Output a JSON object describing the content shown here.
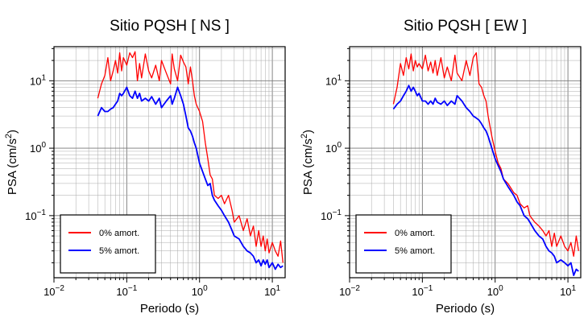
{
  "chart_data": [
    {
      "type": "line",
      "title": "Sitio PQSH [ NS ]",
      "xlabel": "Periodo (s)",
      "ylabel_text": "PSA (cm/s",
      "ylabel_sup": "2",
      "ylabel_close": ")",
      "xscale": "log",
      "yscale": "log",
      "xlim": [
        0.01,
        15
      ],
      "ylim": [
        0.012,
        32
      ],
      "grid": true,
      "legend_position": "bottom-left",
      "x_ticks": [
        {
          "value": 0.01,
          "base": "10",
          "exp": "−2"
        },
        {
          "value": 0.1,
          "base": "10",
          "exp": "−1"
        },
        {
          "value": 1,
          "base": "10",
          "exp": "0"
        },
        {
          "value": 10,
          "base": "10",
          "exp": "1"
        }
      ],
      "y_ticks": [
        {
          "value": 0.1,
          "base": "10",
          "exp": "−1"
        },
        {
          "value": 1,
          "base": "10",
          "exp": "0"
        },
        {
          "value": 10,
          "base": "10",
          "exp": "1"
        }
      ],
      "series": [
        {
          "name": "0% amort.",
          "color": "#ff0000",
          "x": [
            0.04,
            0.045,
            0.05,
            0.055,
            0.06,
            0.065,
            0.07,
            0.075,
            0.08,
            0.085,
            0.09,
            0.1,
            0.11,
            0.12,
            0.13,
            0.14,
            0.15,
            0.16,
            0.18,
            0.2,
            0.22,
            0.25,
            0.28,
            0.3,
            0.35,
            0.4,
            0.42,
            0.45,
            0.5,
            0.55,
            0.6,
            0.65,
            0.7,
            0.75,
            0.8,
            0.85,
            0.9,
            1.0,
            1.1,
            1.2,
            1.3,
            1.4,
            1.5,
            1.6,
            1.8,
            2.0,
            2.2,
            2.5,
            2.8,
            3.0,
            3.5,
            4.0,
            4.5,
            5.0,
            5.5,
            6.0,
            6.5,
            7.0,
            7.5,
            8.0,
            8.5,
            9.0,
            10,
            11,
            12,
            13,
            14
          ],
          "y": [
            5.5,
            9,
            12,
            22,
            10,
            14,
            20,
            13,
            26,
            14,
            22,
            17,
            26,
            22,
            27,
            10,
            18,
            11,
            25,
            14,
            11,
            17,
            10,
            20,
            13,
            9,
            25,
            15,
            10,
            24,
            19,
            16,
            9,
            16,
            10,
            6,
            4.5,
            3.5,
            2.5,
            1.2,
            0.7,
            0.4,
            0.35,
            0.2,
            0.18,
            0.2,
            0.15,
            0.2,
            0.12,
            0.08,
            0.1,
            0.06,
            0.09,
            0.05,
            0.07,
            0.035,
            0.06,
            0.035,
            0.05,
            0.03,
            0.045,
            0.028,
            0.04,
            0.03,
            0.025,
            0.042,
            0.02
          ]
        },
        {
          "name": "5% amort.",
          "color": "#0000ff",
          "x": [
            0.04,
            0.045,
            0.05,
            0.055,
            0.06,
            0.065,
            0.07,
            0.075,
            0.08,
            0.085,
            0.09,
            0.1,
            0.11,
            0.12,
            0.13,
            0.14,
            0.15,
            0.16,
            0.18,
            0.2,
            0.22,
            0.25,
            0.28,
            0.3,
            0.35,
            0.4,
            0.42,
            0.45,
            0.5,
            0.55,
            0.6,
            0.65,
            0.7,
            0.75,
            0.8,
            0.85,
            0.9,
            1.0,
            1.1,
            1.2,
            1.3,
            1.4,
            1.5,
            1.6,
            1.8,
            2.0,
            2.2,
            2.5,
            2.8,
            3.0,
            3.5,
            4.0,
            4.5,
            5.0,
            5.5,
            6.0,
            6.5,
            7.0,
            7.5,
            8.0,
            8.5,
            9.0,
            10,
            11,
            12,
            13,
            14
          ],
          "y": [
            3,
            4,
            3.5,
            3.5,
            3.8,
            4,
            4.5,
            5,
            6.5,
            6,
            6.5,
            8,
            6,
            5.5,
            7,
            5.5,
            6.5,
            5,
            5.5,
            5,
            5.8,
            4.5,
            5.5,
            4,
            5,
            6,
            4.5,
            5.5,
            8,
            6,
            4.5,
            3,
            2,
            1.8,
            1.5,
            1.2,
            1,
            0.6,
            0.45,
            0.35,
            0.28,
            0.3,
            0.2,
            0.17,
            0.14,
            0.12,
            0.1,
            0.08,
            0.06,
            0.05,
            0.045,
            0.035,
            0.03,
            0.028,
            0.025,
            0.02,
            0.022,
            0.018,
            0.022,
            0.019,
            0.022,
            0.017,
            0.02,
            0.016,
            0.019,
            0.017,
            0.018
          ]
        }
      ]
    },
    {
      "type": "line",
      "title": "Sitio PQSH [ EW ]",
      "xlabel": "Periodo (s)",
      "ylabel_text": "PSA (cm/s",
      "ylabel_sup": "2",
      "ylabel_close": ")",
      "xscale": "log",
      "yscale": "log",
      "xlim": [
        0.01,
        15
      ],
      "ylim": [
        0.012,
        32
      ],
      "grid": true,
      "legend_position": "bottom-left",
      "x_ticks": [
        {
          "value": 0.01,
          "base": "10",
          "exp": "−2"
        },
        {
          "value": 0.1,
          "base": "10",
          "exp": "−1"
        },
        {
          "value": 1,
          "base": "10",
          "exp": "0"
        },
        {
          "value": 10,
          "base": "10",
          "exp": "1"
        }
      ],
      "y_ticks": [
        {
          "value": 0.1,
          "base": "10",
          "exp": "−1"
        },
        {
          "value": 1,
          "base": "10",
          "exp": "0"
        },
        {
          "value": 10,
          "base": "10",
          "exp": "1"
        }
      ],
      "series": [
        {
          "name": "0% amort.",
          "color": "#ff0000",
          "x": [
            0.04,
            0.045,
            0.05,
            0.055,
            0.06,
            0.065,
            0.07,
            0.075,
            0.08,
            0.085,
            0.09,
            0.1,
            0.11,
            0.12,
            0.13,
            0.14,
            0.15,
            0.16,
            0.18,
            0.2,
            0.22,
            0.25,
            0.28,
            0.3,
            0.35,
            0.4,
            0.45,
            0.5,
            0.55,
            0.6,
            0.65,
            0.7,
            0.75,
            0.8,
            0.9,
            1.0,
            1.1,
            1.2,
            1.3,
            1.5,
            1.8,
            2.0,
            2.2,
            2.5,
            2.8,
            3.0,
            3.5,
            4.0,
            4.5,
            5.0,
            5.5,
            6.0,
            6.5,
            7.0,
            8.0,
            9.0,
            10,
            11,
            12,
            13,
            14
          ],
          "y": [
            4.5,
            8,
            18,
            12,
            22,
            15,
            25,
            14,
            20,
            16,
            18,
            15,
            24,
            14,
            19,
            13,
            20,
            12,
            22,
            11,
            16,
            10,
            24,
            13,
            10,
            20,
            12,
            22,
            26,
            9,
            8,
            6,
            5,
            3,
            1.5,
            0.9,
            0.6,
            0.5,
            0.35,
            0.3,
            0.22,
            0.2,
            0.15,
            0.13,
            0.14,
            0.1,
            0.08,
            0.07,
            0.06,
            0.05,
            0.06,
            0.035,
            0.055,
            0.035,
            0.05,
            0.035,
            0.03,
            0.04,
            0.025,
            0.05,
            0.03
          ]
        },
        {
          "name": "5% amort.",
          "color": "#0000ff",
          "x": [
            0.04,
            0.045,
            0.05,
            0.055,
            0.06,
            0.065,
            0.07,
            0.075,
            0.08,
            0.085,
            0.09,
            0.1,
            0.11,
            0.12,
            0.13,
            0.14,
            0.15,
            0.16,
            0.18,
            0.2,
            0.22,
            0.25,
            0.28,
            0.3,
            0.35,
            0.4,
            0.45,
            0.5,
            0.55,
            0.6,
            0.65,
            0.7,
            0.75,
            0.8,
            0.9,
            1.0,
            1.1,
            1.2,
            1.3,
            1.5,
            1.8,
            2.0,
            2.2,
            2.5,
            2.8,
            3.0,
            3.5,
            4.0,
            4.5,
            5.0,
            5.5,
            6.0,
            6.5,
            7.0,
            8.0,
            9.0,
            10,
            11,
            12,
            13,
            14
          ],
          "y": [
            3.8,
            4.5,
            5,
            6,
            7,
            8.5,
            7,
            8,
            7,
            6,
            6.5,
            5,
            5,
            4.5,
            5,
            4.5,
            5.5,
            4.8,
            4.5,
            5,
            4.3,
            5,
            4.5,
            6,
            5,
            4,
            3.5,
            3,
            2.8,
            2.6,
            2.3,
            2,
            1.8,
            1.5,
            1,
            0.7,
            0.55,
            0.45,
            0.35,
            0.27,
            0.2,
            0.16,
            0.14,
            0.1,
            0.09,
            0.08,
            0.06,
            0.05,
            0.045,
            0.035,
            0.03,
            0.028,
            0.025,
            0.02,
            0.022,
            0.02,
            0.018,
            0.02,
            0.013,
            0.016,
            0.015
          ]
        }
      ]
    }
  ]
}
